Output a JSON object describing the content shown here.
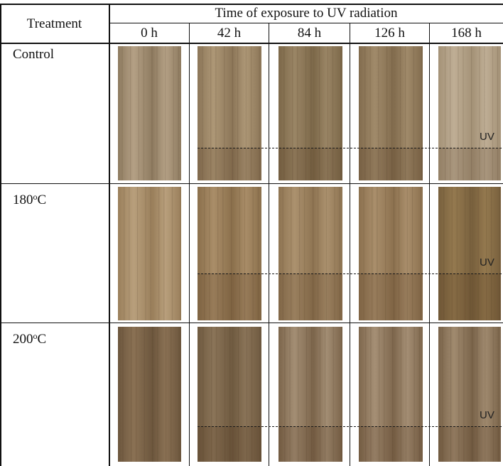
{
  "table": {
    "treatment_header": "Treatment",
    "time_header": "Time of exposure to UV radiation",
    "time_columns": [
      "0 h",
      "42 h",
      "84 h",
      "126 h",
      "168 h"
    ],
    "uv_label": "UV",
    "rows": [
      {
        "label_main": "Control",
        "label_sup": "",
        "label_tail": "",
        "colors": [
          "#b4a085",
          "#ad9776",
          "#9a8565",
          "#a08a6a",
          "#bfae95"
        ],
        "dark": [
          "#8e7b60",
          "#8c7658",
          "#7c6849",
          "#826c4e",
          "#a49277"
        ]
      },
      {
        "label_main": "180",
        "label_sup": "o",
        "label_tail": "C",
        "colors": [
          "#b89f7c",
          "#a98d68",
          "#ab916e",
          "#a98e6b",
          "#94794f"
        ],
        "dark": [
          "#9a7f5b",
          "#8b704c",
          "#8e7452",
          "#8c714f",
          "#78603d"
        ]
      },
      {
        "label_main": "200",
        "label_sup": "o",
        "label_tail": "C",
        "colors": [
          "#8a7154",
          "#8a7458",
          "#a38e74",
          "#a58f75",
          "#a08a6f"
        ],
        "dark": [
          "#6c563d",
          "#6f5a40",
          "#7c654b",
          "#7e674d",
          "#7a644a"
        ]
      }
    ]
  }
}
